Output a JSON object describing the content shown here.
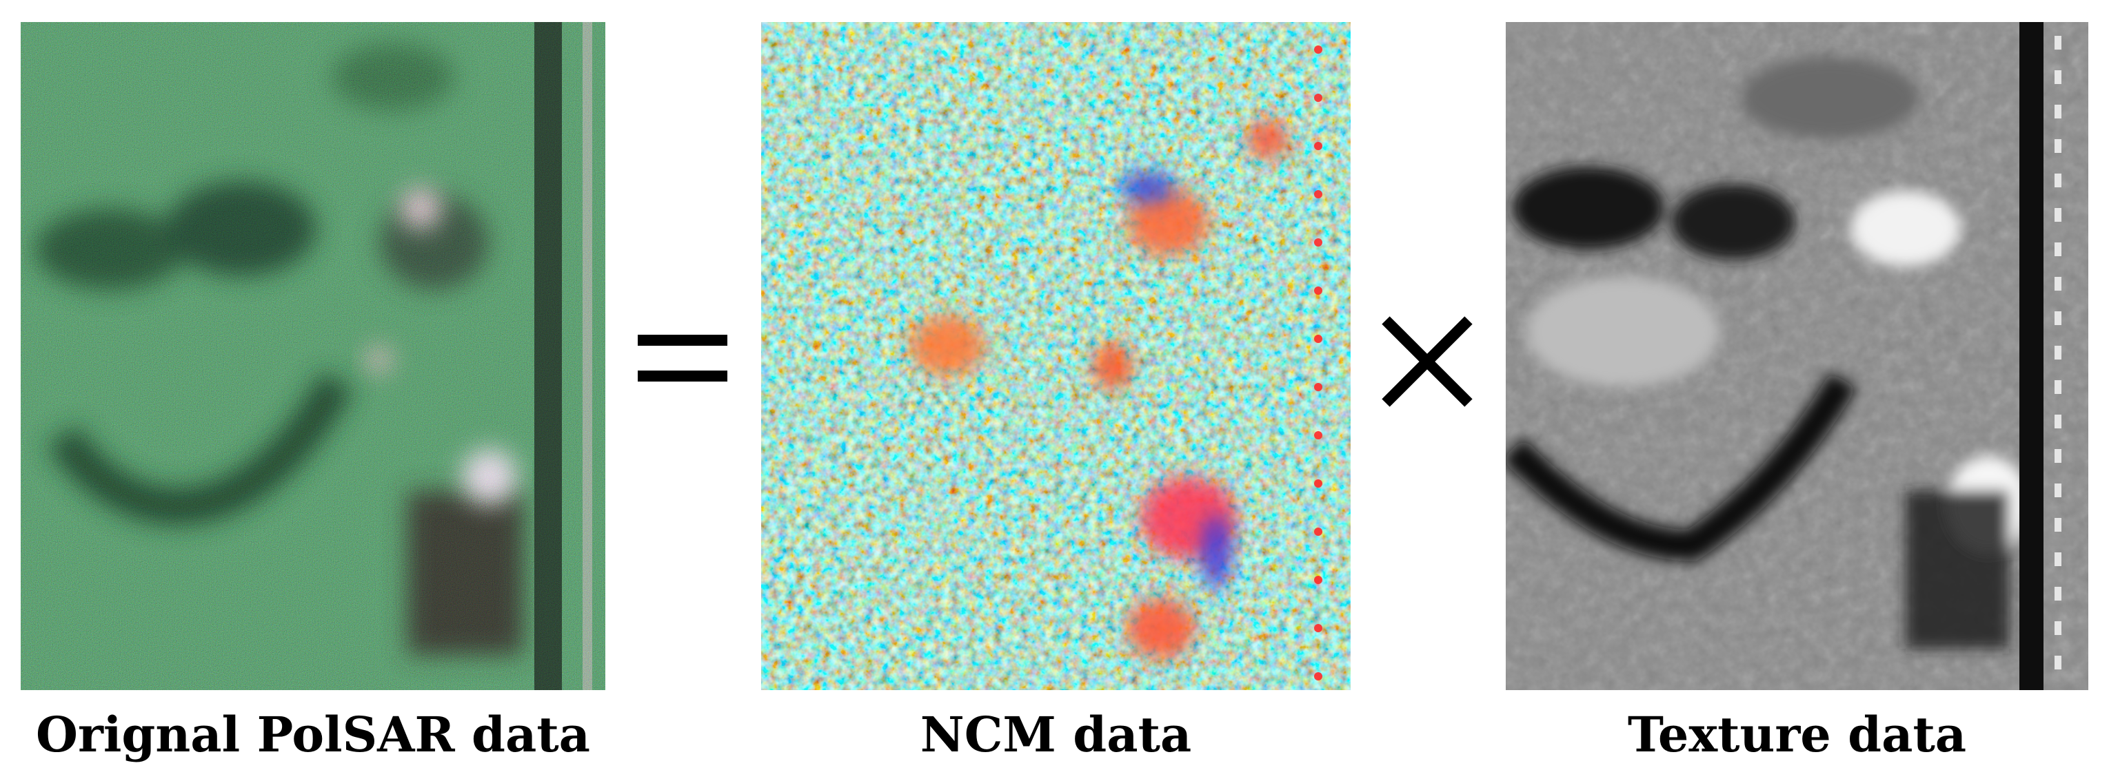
{
  "figure": {
    "panels": [
      {
        "id": "polsar",
        "caption": "Orignal PolSAR data"
      },
      {
        "id": "ncm",
        "caption": "NCM data"
      },
      {
        "id": "texture",
        "caption": "Texture data"
      }
    ],
    "operators": {
      "equals": "=",
      "times": "×"
    }
  },
  "colors": {
    "polsar_base": "#5f9a73",
    "ncm_base": "#8fd0d0",
    "texture_base": "#8a8a8a",
    "text": "#000000"
  }
}
